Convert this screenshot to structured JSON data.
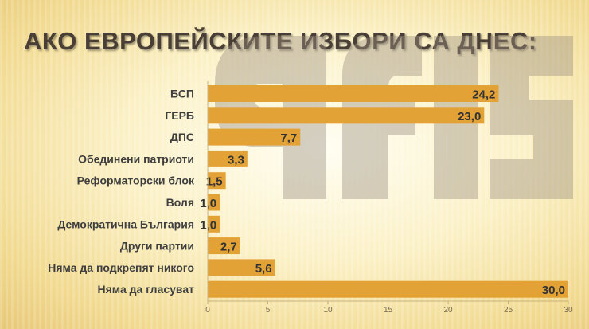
{
  "title": "АКО ЕВРОПЕЙСКИТЕ ИЗБОРИ СА ДНЕС:",
  "watermark": {
    "text": "afis",
    "color": "#9a9080"
  },
  "chart_data": {
    "type": "bar",
    "orientation": "horizontal",
    "categories": [
      "БСП",
      "ГЕРБ",
      "ДПС",
      "Обединени патриоти",
      "Реформаторски блок",
      "Воля",
      "Демократична България",
      "Други партии",
      "Няма да подкрепят никого",
      "Няма да гласуват"
    ],
    "values": [
      24.2,
      23.0,
      7.7,
      3.3,
      1.5,
      1.0,
      1.0,
      2.7,
      5.6,
      30.0
    ],
    "value_labels": [
      "24,2",
      "23,0",
      "7,7",
      "3,3",
      "1,5",
      "1,0",
      "1,0",
      "2,7",
      "5,6",
      "30,0"
    ],
    "xlim": [
      0,
      30
    ],
    "xticks": [
      0,
      5,
      10,
      15,
      20,
      25,
      30
    ],
    "grid": false,
    "bar_color": "#e3a235"
  }
}
